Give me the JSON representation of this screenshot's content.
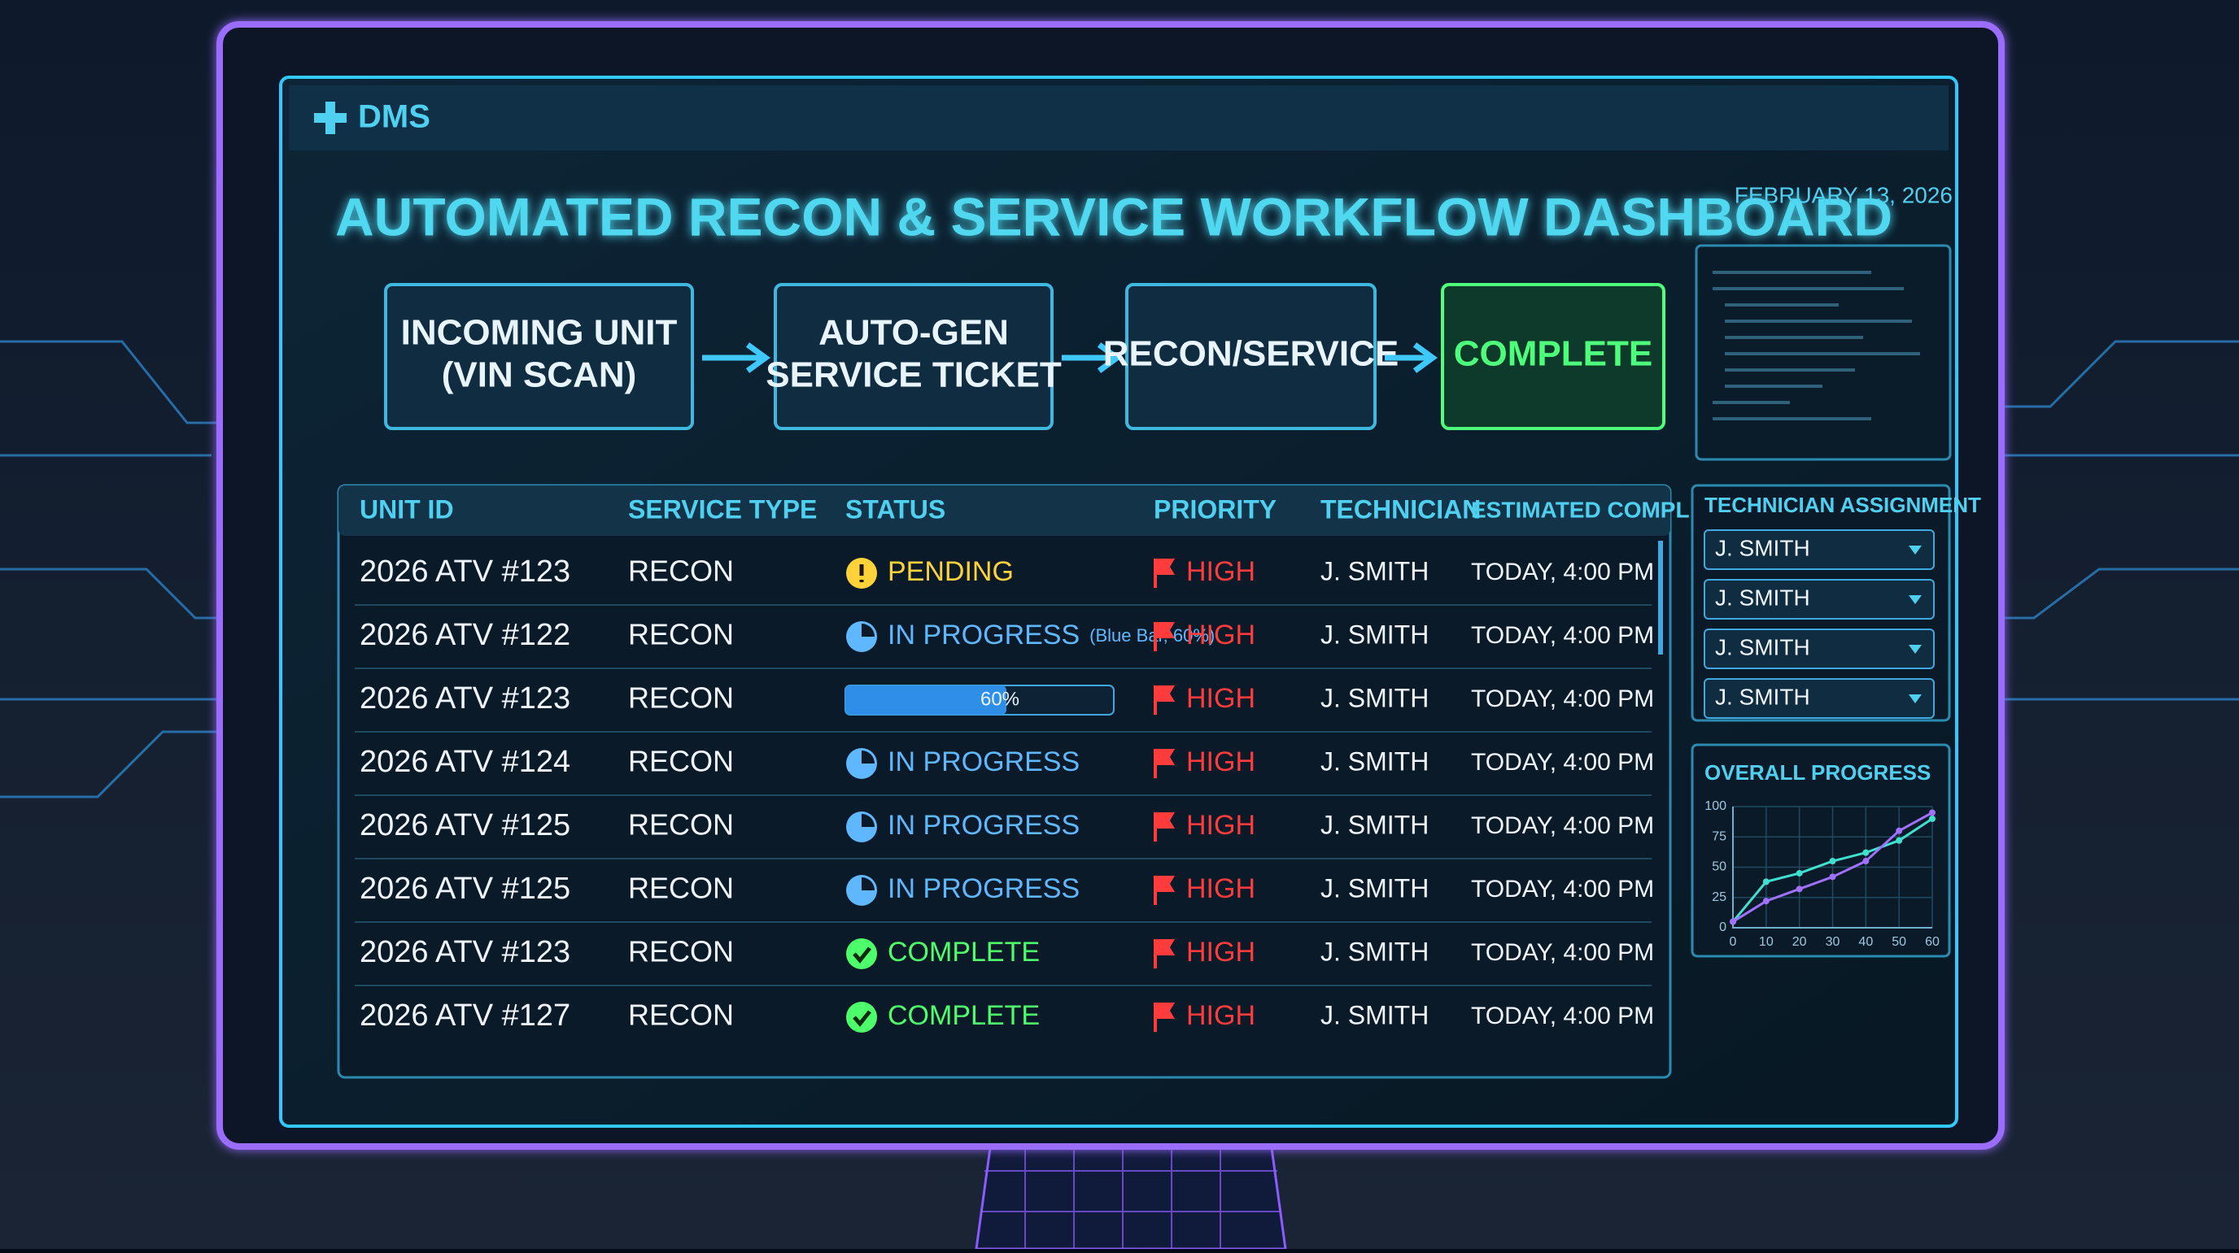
{
  "header": {
    "logo": "DMS",
    "title": "AUTOMATED RECON & SERVICE WORKFLOW DASHBOARD",
    "date": "FEBRUARY 13, 2026"
  },
  "workflow": [
    {
      "lines": [
        "INCOMING UNIT",
        "(VIN SCAN)"
      ],
      "color": "#e8f4ff"
    },
    {
      "lines": [
        "AUTO-GEN",
        "SERVICE TICKET"
      ],
      "color": "#e8f4ff"
    },
    {
      "lines": [
        "RECON/SERVICE"
      ],
      "color": "#e8f4ff"
    },
    {
      "lines": [
        "COMPLETE"
      ],
      "color": "#4dff7a"
    }
  ],
  "table": {
    "columns": [
      "UNIT ID",
      "SERVICE TYPE",
      "STATUS",
      "PRIORITY",
      "TECHNICIAN",
      "ESTIMATED COMPLETION"
    ],
    "rows": [
      {
        "unit": "2026 ATV #123",
        "service": "RECON",
        "status": {
          "icon": "pending",
          "text": "PENDING"
        },
        "priority": "HIGH",
        "technician": "J. SMITH",
        "completion": "TODAY, 4:00 PM"
      },
      {
        "unit": "2026 ATV #122",
        "service": "RECON",
        "status": {
          "icon": "progress",
          "text": "IN PROGRESS",
          "note": "(Blue Bar, 60%)"
        },
        "priority": "HIGH",
        "technician": "J. SMITH",
        "completion": "TODAY, 4:00 PM"
      },
      {
        "unit": "2026 ATV #123",
        "service": "RECON",
        "status": {
          "progress": {
            "value": 60,
            "label": "60%"
          }
        },
        "priority": "HIGH",
        "technician": "J. SMITH",
        "completion": "TODAY, 4:00 PM"
      },
      {
        "unit": "2026 ATV #124",
        "service": "RECON",
        "status": {
          "icon": "progress",
          "text": "IN PROGRESS"
        },
        "priority": "HIGH",
        "technician": "J. SMITH",
        "completion": "TODAY, 4:00 PM"
      },
      {
        "unit": "2026 ATV #125",
        "service": "RECON",
        "status": {
          "icon": "progress",
          "text": "IN PROGRESS"
        },
        "priority": "HIGH",
        "technician": "J. SMITH",
        "completion": "TODAY, 4:00 PM"
      },
      {
        "unit": "2026 ATV #125",
        "service": "RECON",
        "status": {
          "icon": "progress",
          "text": "IN PROGRESS"
        },
        "priority": "HIGH",
        "technician": "J. SMITH",
        "completion": "TODAY, 4:00 PM"
      },
      {
        "unit": "2026 ATV #123",
        "service": "RECON",
        "status": {
          "icon": "complete",
          "text": "COMPLETE"
        },
        "priority": "HIGH",
        "technician": "J. SMITH",
        "completion": "TODAY, 4:00 PM"
      },
      {
        "unit": "2026 ATV #127",
        "service": "RECON",
        "status": {
          "icon": "complete",
          "text": "COMPLETE"
        },
        "priority": "HIGH",
        "technician": "J. SMITH",
        "completion": "TODAY, 4:00 PM"
      }
    ]
  },
  "technician_assignment": {
    "title": "TECHNICIAN ASSIGNMENT",
    "options": [
      "J. SMITH",
      "J. SMITH",
      "J. SMITH",
      "J. SMITH"
    ]
  },
  "chart_data": {
    "type": "line",
    "title": "OVERALL PROGRESS",
    "x": [
      0,
      10,
      20,
      30,
      40,
      50,
      60
    ],
    "series": [
      {
        "color": "#3fe0d0",
        "values": [
          5,
          38,
          45,
          55,
          62,
          72,
          90
        ]
      },
      {
        "color": "#a070ff",
        "values": [
          5,
          22,
          32,
          42,
          55,
          80,
          95
        ]
      }
    ],
    "xlim": [
      0,
      60
    ],
    "ylim": [
      0,
      100
    ],
    "xticks": [
      0,
      10,
      20,
      30,
      40,
      50,
      60
    ],
    "yticks": [
      0,
      25,
      50,
      75,
      100
    ],
    "grid": true
  }
}
